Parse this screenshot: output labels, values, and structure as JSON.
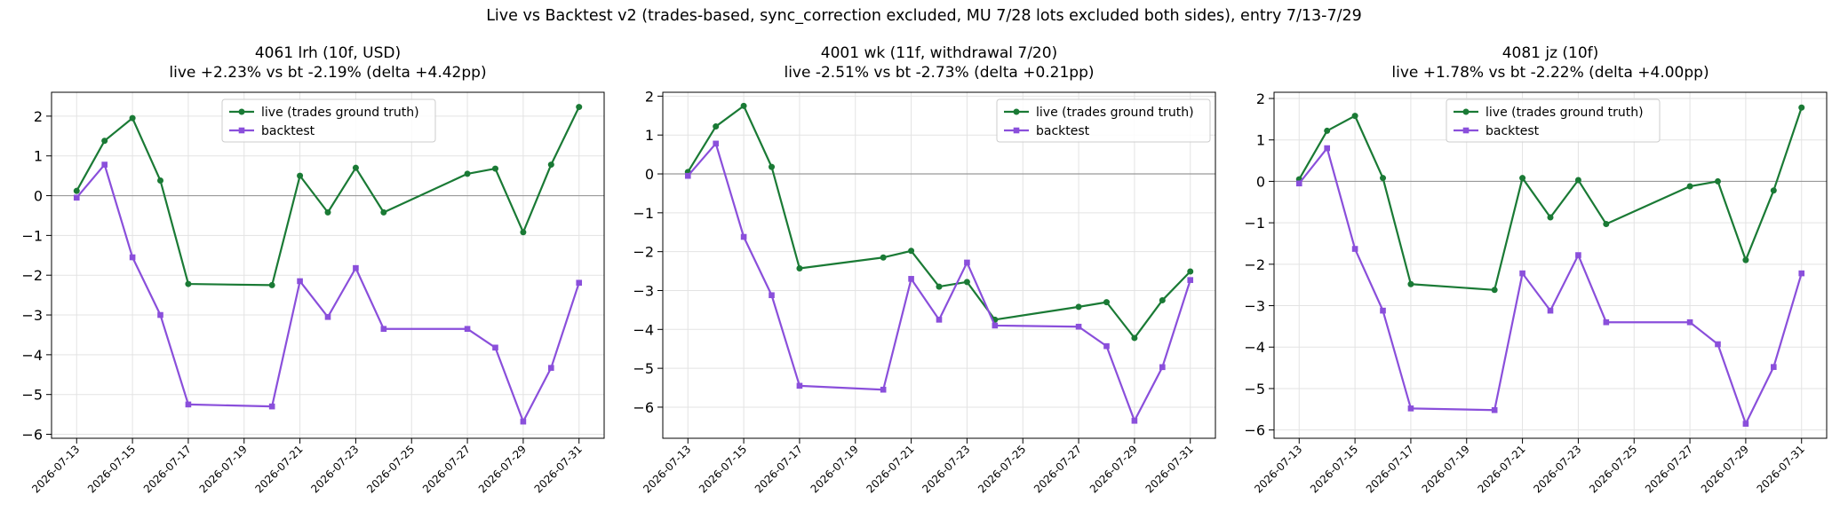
{
  "suptitle": "Live vs Backtest v2 (trades-based, sync_correction excluded, MU 7/28 lots excluded both sides), entry 7/13-7/29",
  "colors": {
    "live": "#1a7a35",
    "backtest": "#8a4fdb",
    "zero_line": "#999999",
    "grid": "#e3e3e3"
  },
  "chart_data": [
    {
      "type": "line",
      "title": "4061 lrh (10f, USD)",
      "subtitle": "live +2.23% vs bt -2.19% (delta +4.42pp)",
      "xlabel": "",
      "ylabel": "",
      "x_ticks": [
        "2026-07-13",
        "2026-07-15",
        "2026-07-17",
        "2026-07-19",
        "2026-07-21",
        "2026-07-23",
        "2026-07-25",
        "2026-07-27",
        "2026-07-29",
        "2026-07-31"
      ],
      "ylim": [
        -6.1,
        2.6
      ],
      "y_ticks": [
        -6,
        -5,
        -4,
        -3,
        -2,
        -1,
        0,
        1,
        2
      ],
      "legend": "upper center",
      "grid": true,
      "x": [
        "2026-07-13",
        "2026-07-14",
        "2026-07-15",
        "2026-07-16",
        "2026-07-17",
        "2026-07-20",
        "2026-07-21",
        "2026-07-22",
        "2026-07-23",
        "2026-07-24",
        "2026-07-27",
        "2026-07-28",
        "2026-07-29",
        "2026-07-30",
        "2026-07-31"
      ],
      "series": [
        {
          "name": "live (trades ground truth)",
          "marker": "circle",
          "values": [
            0.12,
            1.38,
            1.95,
            0.38,
            -2.22,
            -2.25,
            0.5,
            -0.42,
            0.7,
            -0.42,
            0.55,
            0.68,
            -0.92,
            0.78,
            2.23
          ]
        },
        {
          "name": "backtest",
          "marker": "square",
          "values": [
            -0.05,
            0.78,
            -1.55,
            -3.0,
            -5.25,
            -5.3,
            -2.15,
            -3.05,
            -1.82,
            -3.35,
            -3.35,
            -3.82,
            -5.68,
            -4.33,
            -2.19
          ]
        }
      ]
    },
    {
      "type": "line",
      "title": "4001 wk (11f, withdrawal 7/20)",
      "subtitle": "live -2.51% vs bt -2.73% (delta +0.21pp)",
      "xlabel": "",
      "ylabel": "",
      "x_ticks": [
        "2026-07-13",
        "2026-07-15",
        "2026-07-17",
        "2026-07-19",
        "2026-07-21",
        "2026-07-23",
        "2026-07-25",
        "2026-07-27",
        "2026-07-29",
        "2026-07-31"
      ],
      "ylim": [
        -6.8,
        2.1
      ],
      "y_ticks": [
        -6,
        -5,
        -4,
        -3,
        -2,
        -1,
        0,
        1,
        2
      ],
      "legend": "upper right",
      "grid": true,
      "x": [
        "2026-07-13",
        "2026-07-14",
        "2026-07-15",
        "2026-07-16",
        "2026-07-17",
        "2026-07-20",
        "2026-07-21",
        "2026-07-22",
        "2026-07-23",
        "2026-07-24",
        "2026-07-27",
        "2026-07-28",
        "2026-07-29",
        "2026-07-30",
        "2026-07-31"
      ],
      "series": [
        {
          "name": "live (trades ground truth)",
          "marker": "circle",
          "values": [
            0.05,
            1.22,
            1.75,
            0.18,
            -2.43,
            -2.15,
            -1.98,
            -2.9,
            -2.78,
            -3.75,
            -3.42,
            -3.3,
            -4.22,
            -3.25,
            -2.51
          ]
        },
        {
          "name": "backtest",
          "marker": "square",
          "values": [
            -0.05,
            0.78,
            -1.62,
            -3.12,
            -5.45,
            -5.55,
            -2.7,
            -3.75,
            -2.28,
            -3.9,
            -3.93,
            -4.43,
            -6.35,
            -4.97,
            -2.73
          ]
        }
      ]
    },
    {
      "type": "line",
      "title": "4081 jz (10f)",
      "subtitle": "live +1.78% vs bt -2.22% (delta +4.00pp)",
      "xlabel": "",
      "ylabel": "",
      "x_ticks": [
        "2026-07-13",
        "2026-07-15",
        "2026-07-17",
        "2026-07-19",
        "2026-07-21",
        "2026-07-23",
        "2026-07-25",
        "2026-07-27",
        "2026-07-29",
        "2026-07-31"
      ],
      "ylim": [
        -6.2,
        2.15
      ],
      "y_ticks": [
        -6,
        -5,
        -4,
        -3,
        -2,
        -1,
        0,
        1,
        2
      ],
      "legend": "upper center",
      "grid": true,
      "x": [
        "2026-07-13",
        "2026-07-14",
        "2026-07-15",
        "2026-07-16",
        "2026-07-17",
        "2026-07-20",
        "2026-07-21",
        "2026-07-22",
        "2026-07-23",
        "2026-07-24",
        "2026-07-27",
        "2026-07-28",
        "2026-07-29",
        "2026-07-30",
        "2026-07-31"
      ],
      "series": [
        {
          "name": "live (trades ground truth)",
          "marker": "circle",
          "values": [
            0.05,
            1.22,
            1.58,
            0.08,
            -2.48,
            -2.62,
            0.08,
            -0.87,
            0.03,
            -1.03,
            -0.12,
            0.0,
            -1.9,
            -0.22,
            1.78
          ]
        },
        {
          "name": "backtest",
          "marker": "square",
          "values": [
            -0.05,
            0.8,
            -1.63,
            -3.12,
            -5.48,
            -5.52,
            -2.22,
            -3.12,
            -1.78,
            -3.4,
            -3.4,
            -3.93,
            -5.85,
            -4.48,
            -2.22
          ]
        }
      ]
    }
  ]
}
